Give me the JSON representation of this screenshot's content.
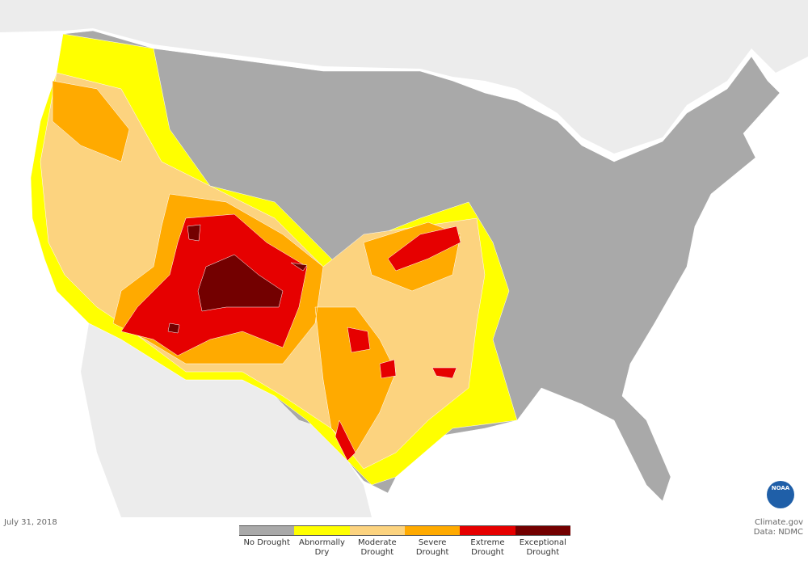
{
  "map": {
    "date": "July 31, 2018",
    "credit": "Climate.gov",
    "source": "Data: NDMC",
    "logo": "NOAA",
    "legend": [
      {
        "label": "No Drought",
        "color": "#a9a9a9"
      },
      {
        "label": "Abnormally Dry",
        "color": "#ffff00"
      },
      {
        "label": "Moderate Drought",
        "color": "#fcd37f"
      },
      {
        "label": "Severe Drought",
        "color": "#ffaa00"
      },
      {
        "label": "Extreme Drought",
        "color": "#e60000"
      },
      {
        "label": "Exceptional Drought",
        "color": "#730000"
      }
    ]
  }
}
